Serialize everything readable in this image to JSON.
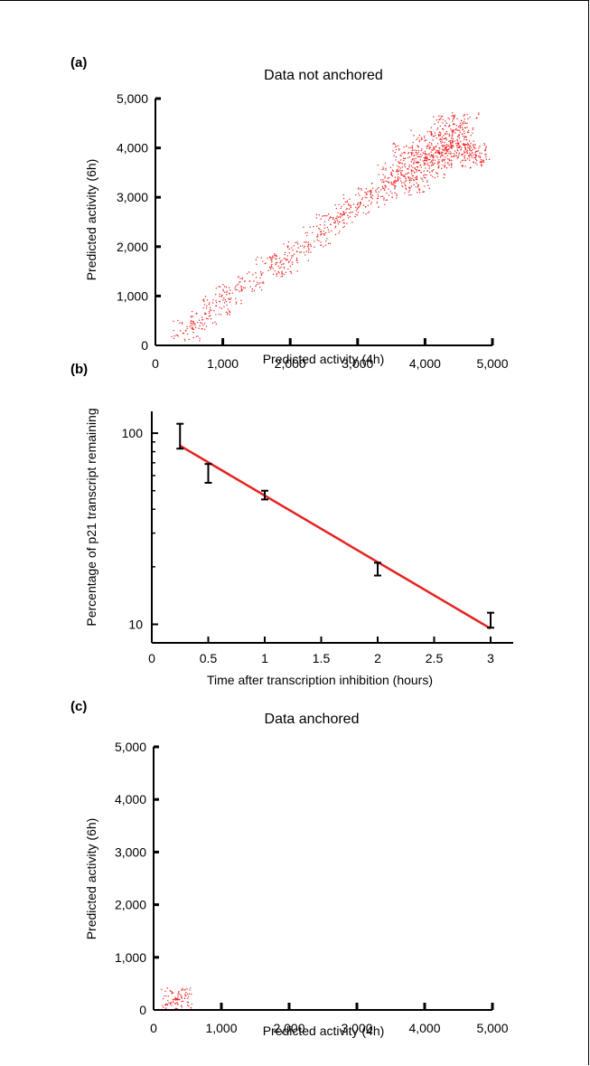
{
  "colors": {
    "series": "#ee2222",
    "axis": "#000000",
    "fit_line": "#e82020"
  },
  "chart_data": [
    {
      "id": "a",
      "panel_label": "(a)",
      "type": "scatter",
      "title": "Data not anchored",
      "xlabel": "Predicted activity (4h)",
      "ylabel": "Predicted activity (6h)",
      "xlim": [
        0,
        5000
      ],
      "ylim": [
        0,
        5000
      ],
      "xticks": [
        0,
        1000,
        2000,
        3000,
        4000,
        5000
      ],
      "yticks": [
        0,
        1000,
        2000,
        3000,
        4000,
        5000
      ],
      "xtick_labels": [
        "0",
        "1,000",
        "2,000",
        "3,000",
        "4,000",
        "5,000"
      ],
      "ytick_labels": [
        "0",
        "1,000",
        "2,000",
        "3,000",
        "4,000",
        "5,000"
      ],
      "grid": false,
      "series": [
        {
          "color": "#ee2222",
          "points": [
            [
              450,
              300
            ],
            [
              700,
              520
            ],
            [
              900,
              800
            ],
            [
              1100,
              1050
            ],
            [
              1400,
              1300
            ],
            [
              1700,
              1580
            ],
            [
              1900,
              1650
            ],
            [
              2100,
              1900
            ],
            [
              2400,
              2200
            ],
            [
              2600,
              2450
            ],
            [
              2800,
              2650
            ],
            [
              3000,
              2850
            ],
            [
              3200,
              3000
            ],
            [
              3400,
              3150
            ],
            [
              3600,
              3350
            ],
            [
              3800,
              3550
            ],
            [
              3900,
              3700
            ],
            [
              4000,
              3750
            ],
            [
              4100,
              3850
            ],
            [
              4200,
              3900
            ],
            [
              4300,
              4000
            ],
            [
              4400,
              4050
            ],
            [
              4500,
              4100
            ],
            [
              4600,
              4000
            ],
            [
              4700,
              3900
            ],
            [
              4750,
              3800
            ],
            [
              3900,
              3250
            ],
            [
              4200,
              3600
            ],
            [
              4400,
              4350
            ],
            [
              4600,
              4500
            ],
            [
              4300,
              4450
            ],
            [
              4000,
              4150
            ],
            [
              3700,
              3900
            ],
            [
              3500,
              3500
            ]
          ]
        }
      ]
    },
    {
      "id": "b",
      "panel_label": "(b)",
      "type": "scatter",
      "xlabel": "Time after transcription inhibition (hours)",
      "ylabel": "Percentage of p21 transcript remaining",
      "xlim": [
        0,
        3.2
      ],
      "ylim": [
        8,
        130
      ],
      "y_scale": "log",
      "xticks": [
        0,
        0.5,
        1,
        1.5,
        2,
        2.5,
        3
      ],
      "xtick_labels": [
        "0",
        "0.5",
        "1",
        "1.5",
        "2",
        "2.5",
        "3"
      ],
      "yticks_major": [
        10,
        100
      ],
      "ytick_labels": [
        "10",
        "100"
      ],
      "yticks_minor": [
        20,
        30,
        40,
        50,
        60,
        70,
        80,
        90
      ],
      "grid": false,
      "series": [
        {
          "color": "#000000",
          "error_bars": [
            {
              "x": 0.25,
              "ymin": 83,
              "ymax": 112
            },
            {
              "x": 0.5,
              "ymin": 55,
              "ymax": 69
            },
            {
              "x": 1,
              "ymin": 45,
              "ymax": 50
            },
            {
              "x": 2,
              "ymin": 18,
              "ymax": 21
            },
            {
              "x": 3,
              "ymin": 9.6,
              "ymax": 11.5
            }
          ]
        }
      ],
      "fit_line": {
        "color": "#e82020",
        "points": [
          [
            0.25,
            86
          ],
          [
            3,
            9.5
          ]
        ]
      }
    },
    {
      "id": "c",
      "panel_label": "(c)",
      "type": "scatter",
      "title": "Data anchored",
      "xlabel": "Predicted activity (4h)",
      "ylabel": "Predicted activity (6h)",
      "xlim": [
        0,
        5000
      ],
      "ylim": [
        0,
        5000
      ],
      "xticks": [
        0,
        1000,
        2000,
        3000,
        4000,
        5000
      ],
      "yticks": [
        0,
        1000,
        2000,
        3000,
        4000,
        5000
      ],
      "xtick_labels": [
        "0",
        "1,000",
        "2,000",
        "3,000",
        "4,000",
        "5,000"
      ],
      "ytick_labels": [
        "0",
        "1,000",
        "2,000",
        "3,000",
        "4,000",
        "5,000"
      ],
      "grid": false,
      "series": [
        {
          "color": "#ee2222",
          "points": [
            [
              300,
              200
            ],
            [
              320,
              210
            ],
            [
              340,
              205
            ],
            [
              360,
              195
            ],
            [
              380,
              200
            ],
            [
              330,
              190
            ],
            [
              350,
              215
            ]
          ]
        }
      ]
    }
  ]
}
